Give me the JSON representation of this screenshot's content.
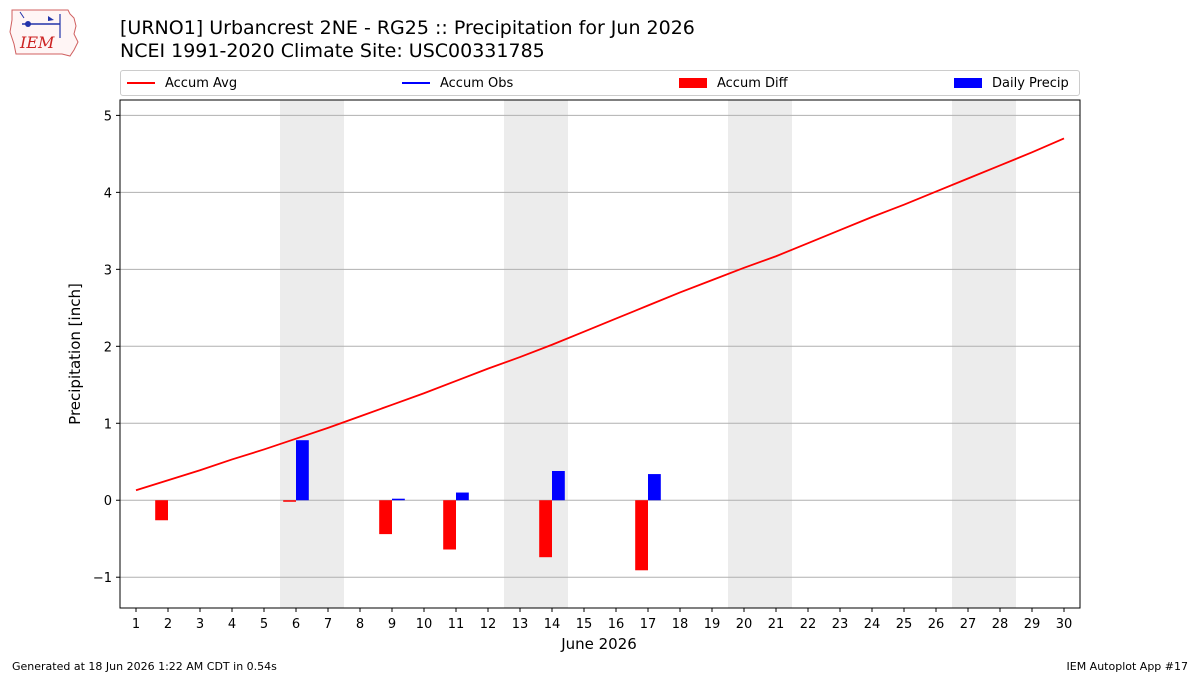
{
  "header": {
    "logo_text": "IEM",
    "title_line1": "[URNO1] Urbancrest 2NE - RG25 :: Precipitation for Jun 2026",
    "title_line2": "NCEI 1991-2020 Climate Site: USC00331785"
  },
  "legend": {
    "accum_avg": "Accum Avg",
    "accum_obs": "Accum Obs",
    "accum_diff": "Accum Diff",
    "daily_precip": "Daily Precip"
  },
  "footer": {
    "left": "Generated at 18 Jun 2026 1:22 AM CDT in 0.54s",
    "right": "IEM Autoplot App #17"
  },
  "colors": {
    "avg": "#ff0000",
    "obs": "#0000ff",
    "diff": "#ff0000",
    "daily": "#0000ff",
    "weekend": "#ececec",
    "grid": "#b0b0b0"
  },
  "chart_data": {
    "type": "bar",
    "xlabel": "June 2026",
    "ylabel": "Precipitation [inch]",
    "ylim": [
      -1.4,
      5.2
    ],
    "yticks": [
      -1,
      0,
      1,
      2,
      3,
      4,
      5
    ],
    "ytick_labels": [
      "−1",
      "0",
      "1",
      "2",
      "3",
      "4",
      "5"
    ],
    "days": [
      1,
      2,
      3,
      4,
      5,
      6,
      7,
      8,
      9,
      10,
      11,
      12,
      13,
      14,
      15,
      16,
      17,
      18,
      19,
      20,
      21,
      22,
      23,
      24,
      25,
      26,
      27,
      28,
      29,
      30
    ],
    "weekend_ranges": [
      [
        6,
        7
      ],
      [
        13,
        14
      ],
      [
        20,
        21
      ],
      [
        27,
        28
      ]
    ],
    "grid": "horizontal",
    "legend_position": "top",
    "series": [
      {
        "name": "Accum Avg",
        "kind": "line",
        "x": [
          1,
          2,
          3,
          4,
          5,
          6,
          7,
          8,
          9,
          10,
          11,
          12,
          13,
          14,
          15,
          16,
          17,
          18,
          19,
          20,
          21,
          22,
          23,
          24,
          25,
          26,
          27,
          28,
          29,
          30
        ],
        "values": [
          0.13,
          0.26,
          0.39,
          0.53,
          0.66,
          0.8,
          0.94,
          1.09,
          1.24,
          1.39,
          1.55,
          1.71,
          1.86,
          2.02,
          2.19,
          2.36,
          2.53,
          2.7,
          2.86,
          3.02,
          3.17,
          3.34,
          3.51,
          3.68,
          3.84,
          4.01,
          4.18,
          4.35,
          4.52,
          4.7
        ]
      },
      {
        "name": "Accum Obs",
        "kind": "line",
        "x": [],
        "values": []
      },
      {
        "name": "Accum Diff",
        "kind": "bar",
        "x": [
          2,
          6,
          9,
          11,
          14,
          17
        ],
        "values": [
          -0.26,
          -0.02,
          -0.44,
          -0.64,
          -0.74,
          -0.91
        ]
      },
      {
        "name": "Daily Precip",
        "kind": "bar",
        "x": [
          6,
          9,
          11,
          14,
          17
        ],
        "values": [
          0.78,
          0.02,
          0.1,
          0.38,
          0.34
        ]
      }
    ]
  }
}
